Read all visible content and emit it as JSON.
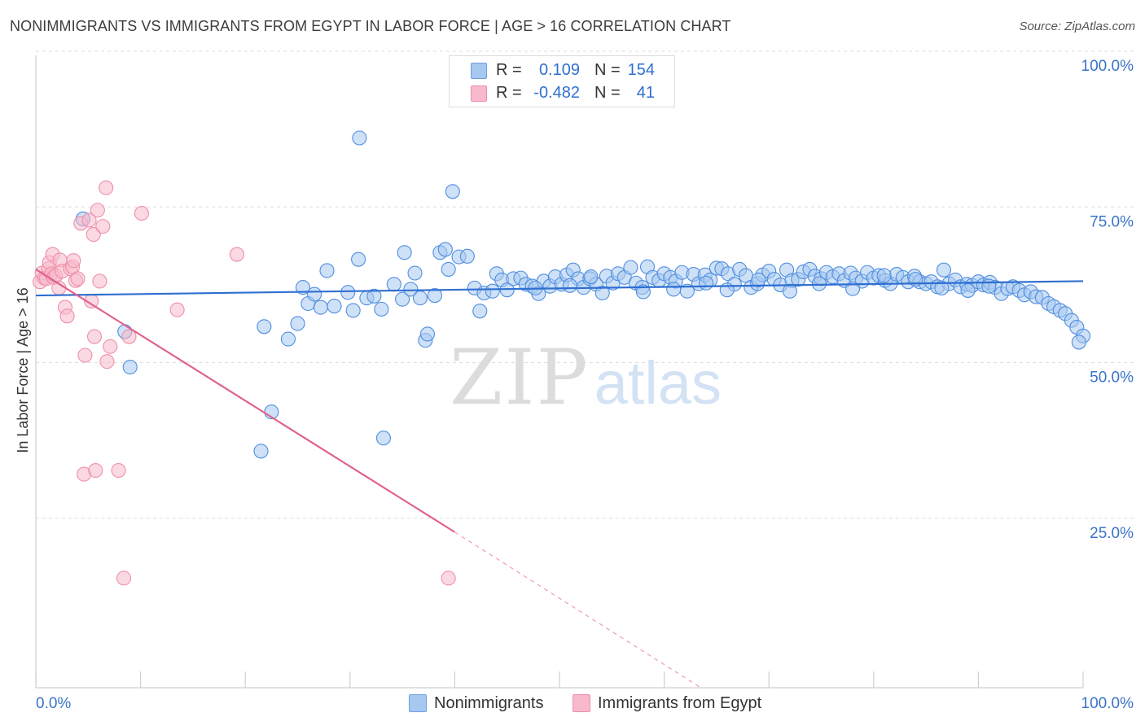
{
  "header": {
    "title": "NONIMMIGRANTS VS IMMIGRANTS FROM EGYPT IN LABOR FORCE | AGE > 16 CORRELATION CHART",
    "source": "Source: ZipAtlas.com"
  },
  "stats": {
    "rows": [
      {
        "r_label": "R =",
        "r_value": "0.109",
        "n_label": "N =",
        "n_value": "154",
        "color": "#a7c8f0"
      },
      {
        "r_label": "R =",
        "r_value": "-0.482",
        "n_label": "N =",
        "n_value": "41",
        "color": "#f7b9cb"
      }
    ]
  },
  "legend": {
    "items": [
      {
        "label": "Nonimmigrants",
        "color": "#a7c8f0"
      },
      {
        "label": "Immigrants from Egypt",
        "color": "#f7b9cb"
      }
    ]
  },
  "watermark": {
    "zip": "ZIP",
    "atlas": "atlas"
  },
  "chart_data": {
    "type": "scatter",
    "title": "NONIMMIGRANTS VS IMMIGRANTS FROM EGYPT IN LABOR FORCE | AGE > 16 CORRELATION CHART",
    "xlabel": "",
    "ylabel": "In Labor Force | Age > 16",
    "xlim": [
      0,
      100
    ],
    "ylim": [
      0,
      100
    ],
    "x_tick_labels": [
      "0.0%",
      "100.0%"
    ],
    "y_ticks": [
      25,
      50,
      75,
      100
    ],
    "y_tick_labels": [
      "25.0%",
      "50.0%",
      "75.0%",
      "100.0%"
    ],
    "grid": true,
    "legend_position": "bottom-center",
    "series": [
      {
        "name": "Nonimmigrants",
        "color": "#4f8fe0",
        "fill": "#a7c8f0",
        "r": 0.109,
        "n": 154,
        "trend": {
          "x0": 0,
          "y0": 63.0,
          "x1": 100,
          "y1": 65.3
        },
        "points": [
          [
            4.5,
            75.3
          ],
          [
            8.5,
            57.2
          ],
          [
            9.0,
            51.5
          ],
          [
            21.5,
            38.0
          ],
          [
            21.8,
            58.0
          ],
          [
            22.5,
            44.3
          ],
          [
            24.1,
            56.0
          ],
          [
            25.0,
            58.5
          ],
          [
            25.5,
            64.3
          ],
          [
            26.0,
            61.7
          ],
          [
            26.6,
            63.2
          ],
          [
            27.2,
            61.1
          ],
          [
            27.8,
            67.0
          ],
          [
            28.5,
            61.3
          ],
          [
            29.8,
            63.5
          ],
          [
            30.3,
            60.6
          ],
          [
            30.8,
            68.8
          ],
          [
            30.9,
            88.3
          ],
          [
            31.6,
            62.6
          ],
          [
            32.3,
            62.9
          ],
          [
            33.0,
            60.8
          ],
          [
            33.2,
            40.1
          ],
          [
            34.2,
            64.8
          ],
          [
            35.0,
            62.4
          ],
          [
            35.2,
            69.9
          ],
          [
            35.8,
            64.0
          ],
          [
            36.2,
            66.6
          ],
          [
            36.7,
            62.6
          ],
          [
            37.2,
            55.8
          ],
          [
            37.4,
            56.8
          ],
          [
            38.1,
            63.0
          ],
          [
            38.6,
            69.9
          ],
          [
            39.1,
            70.4
          ],
          [
            39.4,
            67.2
          ],
          [
            39.8,
            79.7
          ],
          [
            40.4,
            69.2
          ],
          [
            41.2,
            69.3
          ],
          [
            41.9,
            64.2
          ],
          [
            42.4,
            60.5
          ],
          [
            42.8,
            63.4
          ],
          [
            43.6,
            63.7
          ],
          [
            44.0,
            66.5
          ],
          [
            44.5,
            65.5
          ],
          [
            45.0,
            63.9
          ],
          [
            45.6,
            65.7
          ],
          [
            46.3,
            65.8
          ],
          [
            46.8,
            64.8
          ],
          [
            47.4,
            64.5
          ],
          [
            48.0,
            63.3
          ],
          [
            48.5,
            65.3
          ],
          [
            49.1,
            64.5
          ],
          [
            49.6,
            66.0
          ],
          [
            50.2,
            64.8
          ],
          [
            50.7,
            66.3
          ],
          [
            51.3,
            67.1
          ],
          [
            51.8,
            65.7
          ],
          [
            52.3,
            64.3
          ],
          [
            52.9,
            65.7
          ],
          [
            53.5,
            64.8
          ],
          [
            54.1,
            63.4
          ],
          [
            54.5,
            66.1
          ],
          [
            55.1,
            65.0
          ],
          [
            55.6,
            66.5
          ],
          [
            56.2,
            65.9
          ],
          [
            56.8,
            67.5
          ],
          [
            57.3,
            65.0
          ],
          [
            57.9,
            64.3
          ],
          [
            58.4,
            67.6
          ],
          [
            58.9,
            65.9
          ],
          [
            59.5,
            65.4
          ],
          [
            60.0,
            66.5
          ],
          [
            60.6,
            65.9
          ],
          [
            61.1,
            65.3
          ],
          [
            61.7,
            66.7
          ],
          [
            62.2,
            63.7
          ],
          [
            62.8,
            66.4
          ],
          [
            63.3,
            64.9
          ],
          [
            63.9,
            66.3
          ],
          [
            64.4,
            65.5
          ],
          [
            65.0,
            67.4
          ],
          [
            65.5,
            67.3
          ],
          [
            66.1,
            66.5
          ],
          [
            66.7,
            64.8
          ],
          [
            67.2,
            67.2
          ],
          [
            67.8,
            66.2
          ],
          [
            68.3,
            64.3
          ],
          [
            68.9,
            64.9
          ],
          [
            69.4,
            66.3
          ],
          [
            70.0,
            66.9
          ],
          [
            70.5,
            65.6
          ],
          [
            71.1,
            64.7
          ],
          [
            71.7,
            67.1
          ],
          [
            72.2,
            65.4
          ],
          [
            72.8,
            65.6
          ],
          [
            73.3,
            66.8
          ],
          [
            73.9,
            67.2
          ],
          [
            74.4,
            66.1
          ],
          [
            75.0,
            65.7
          ],
          [
            75.5,
            66.7
          ],
          [
            76.1,
            66.0
          ],
          [
            76.7,
            66.5
          ],
          [
            77.2,
            65.4
          ],
          [
            77.8,
            66.6
          ],
          [
            78.3,
            65.8
          ],
          [
            78.9,
            65.3
          ],
          [
            79.4,
            66.7
          ],
          [
            80.0,
            65.8
          ],
          [
            80.5,
            66.2
          ],
          [
            81.1,
            65.4
          ],
          [
            81.6,
            64.9
          ],
          [
            82.2,
            66.4
          ],
          [
            82.8,
            65.9
          ],
          [
            83.3,
            65.2
          ],
          [
            83.9,
            66.1
          ],
          [
            84.4,
            65.2
          ],
          [
            85.0,
            64.9
          ],
          [
            85.5,
            65.2
          ],
          [
            86.1,
            64.4
          ],
          [
            86.7,
            67.1
          ],
          [
            87.2,
            64.9
          ],
          [
            87.8,
            65.5
          ],
          [
            88.3,
            64.4
          ],
          [
            88.9,
            64.8
          ],
          [
            89.4,
            64.6
          ],
          [
            90.0,
            65.2
          ],
          [
            90.5,
            64.7
          ],
          [
            91.1,
            65.1
          ],
          [
            91.6,
            64.3
          ],
          [
            92.2,
            63.3
          ],
          [
            92.8,
            64.1
          ],
          [
            93.3,
            64.4
          ],
          [
            93.9,
            63.8
          ],
          [
            94.4,
            63.1
          ],
          [
            95.0,
            63.6
          ],
          [
            95.5,
            62.8
          ],
          [
            96.1,
            62.7
          ],
          [
            96.7,
            61.7
          ],
          [
            97.2,
            61.2
          ],
          [
            97.8,
            60.6
          ],
          [
            98.3,
            60.1
          ],
          [
            98.9,
            59.0
          ],
          [
            99.4,
            57.9
          ],
          [
            100.0,
            56.5
          ],
          [
            99.6,
            55.5
          ],
          [
            47.7,
            64.2
          ],
          [
            51.0,
            64.6
          ],
          [
            53.0,
            66.0
          ],
          [
            58.0,
            63.6
          ],
          [
            60.9,
            64.0
          ],
          [
            64.0,
            65.0
          ],
          [
            66.0,
            63.9
          ],
          [
            69.0,
            65.5
          ],
          [
            72.0,
            63.7
          ],
          [
            74.8,
            64.9
          ],
          [
            78.0,
            64.1
          ],
          [
            81.0,
            66.2
          ],
          [
            84.0,
            65.6
          ],
          [
            86.5,
            64.2
          ],
          [
            89.0,
            63.8
          ],
          [
            91.0,
            64.5
          ]
        ]
      },
      {
        "name": "Immigrants from Egypt",
        "color": "#ef8fa9",
        "fill": "#f7b9cb",
        "r": -0.482,
        "n": 41,
        "trend": {
          "x0": 0,
          "y0": 67.2,
          "x1": 40.0,
          "y1": 25.0
        },
        "trend_dashed_to": {
          "x": 63.5,
          "y": 0
        },
        "points": [
          [
            0.4,
            65.2
          ],
          [
            0.6,
            66.6
          ],
          [
            0.8,
            65.8
          ],
          [
            1.0,
            65.7
          ],
          [
            1.2,
            67.3
          ],
          [
            1.3,
            68.3
          ],
          [
            1.5,
            66.5
          ],
          [
            1.6,
            69.6
          ],
          [
            1.7,
            65.9
          ],
          [
            1.9,
            66.2
          ],
          [
            2.2,
            64.2
          ],
          [
            2.3,
            68.7
          ],
          [
            2.5,
            66.9
          ],
          [
            2.8,
            61.1
          ],
          [
            3.0,
            59.7
          ],
          [
            3.3,
            67.3
          ],
          [
            3.5,
            67.6
          ],
          [
            3.6,
            68.6
          ],
          [
            3.8,
            65.4
          ],
          [
            4.0,
            65.7
          ],
          [
            4.3,
            74.6
          ],
          [
            4.6,
            34.3
          ],
          [
            4.7,
            53.4
          ],
          [
            5.1,
            75.1
          ],
          [
            5.3,
            62.1
          ],
          [
            5.5,
            72.8
          ],
          [
            5.6,
            56.4
          ],
          [
            5.7,
            34.9
          ],
          [
            5.9,
            76.7
          ],
          [
            6.1,
            65.3
          ],
          [
            6.4,
            74.1
          ],
          [
            6.7,
            80.3
          ],
          [
            6.8,
            52.4
          ],
          [
            7.1,
            54.8
          ],
          [
            7.9,
            34.9
          ],
          [
            8.4,
            17.6
          ],
          [
            8.9,
            56.4
          ],
          [
            10.1,
            76.2
          ],
          [
            13.5,
            60.7
          ],
          [
            19.2,
            69.6
          ],
          [
            39.4,
            17.6
          ]
        ]
      }
    ]
  }
}
